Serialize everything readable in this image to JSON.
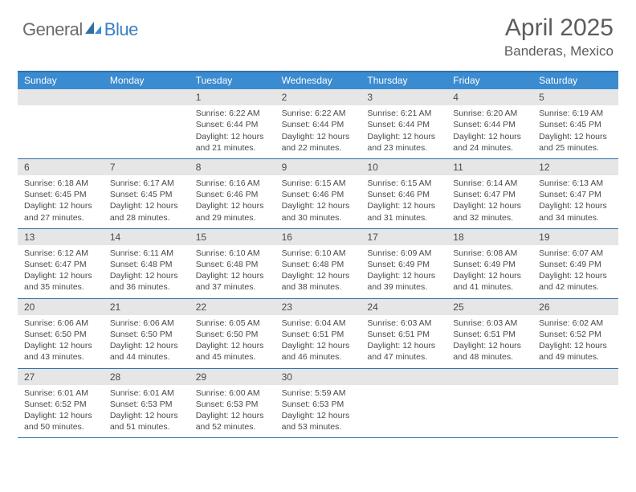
{
  "brand": {
    "part1": "General",
    "part2": "Blue"
  },
  "title": "April 2025",
  "location": "Banderas, Mexico",
  "colors": {
    "header_bar": "#3b8bd0",
    "border": "#2f6fa8",
    "day_header_bg": "#e6e6e6",
    "text": "#4a4a4a",
    "logo_gray": "#6b6b6b",
    "logo_blue": "#3b7fc4"
  },
  "weekdays": [
    "Sunday",
    "Monday",
    "Tuesday",
    "Wednesday",
    "Thursday",
    "Friday",
    "Saturday"
  ],
  "weeks": [
    [
      {
        "day": "",
        "lines": []
      },
      {
        "day": "",
        "lines": []
      },
      {
        "day": "1",
        "lines": [
          "Sunrise: 6:22 AM",
          "Sunset: 6:44 PM",
          "Daylight: 12 hours",
          "and 21 minutes."
        ]
      },
      {
        "day": "2",
        "lines": [
          "Sunrise: 6:22 AM",
          "Sunset: 6:44 PM",
          "Daylight: 12 hours",
          "and 22 minutes."
        ]
      },
      {
        "day": "3",
        "lines": [
          "Sunrise: 6:21 AM",
          "Sunset: 6:44 PM",
          "Daylight: 12 hours",
          "and 23 minutes."
        ]
      },
      {
        "day": "4",
        "lines": [
          "Sunrise: 6:20 AM",
          "Sunset: 6:44 PM",
          "Daylight: 12 hours",
          "and 24 minutes."
        ]
      },
      {
        "day": "5",
        "lines": [
          "Sunrise: 6:19 AM",
          "Sunset: 6:45 PM",
          "Daylight: 12 hours",
          "and 25 minutes."
        ]
      }
    ],
    [
      {
        "day": "6",
        "lines": [
          "Sunrise: 6:18 AM",
          "Sunset: 6:45 PM",
          "Daylight: 12 hours",
          "and 27 minutes."
        ]
      },
      {
        "day": "7",
        "lines": [
          "Sunrise: 6:17 AM",
          "Sunset: 6:45 PM",
          "Daylight: 12 hours",
          "and 28 minutes."
        ]
      },
      {
        "day": "8",
        "lines": [
          "Sunrise: 6:16 AM",
          "Sunset: 6:46 PM",
          "Daylight: 12 hours",
          "and 29 minutes."
        ]
      },
      {
        "day": "9",
        "lines": [
          "Sunrise: 6:15 AM",
          "Sunset: 6:46 PM",
          "Daylight: 12 hours",
          "and 30 minutes."
        ]
      },
      {
        "day": "10",
        "lines": [
          "Sunrise: 6:15 AM",
          "Sunset: 6:46 PM",
          "Daylight: 12 hours",
          "and 31 minutes."
        ]
      },
      {
        "day": "11",
        "lines": [
          "Sunrise: 6:14 AM",
          "Sunset: 6:47 PM",
          "Daylight: 12 hours",
          "and 32 minutes."
        ]
      },
      {
        "day": "12",
        "lines": [
          "Sunrise: 6:13 AM",
          "Sunset: 6:47 PM",
          "Daylight: 12 hours",
          "and 34 minutes."
        ]
      }
    ],
    [
      {
        "day": "13",
        "lines": [
          "Sunrise: 6:12 AM",
          "Sunset: 6:47 PM",
          "Daylight: 12 hours",
          "and 35 minutes."
        ]
      },
      {
        "day": "14",
        "lines": [
          "Sunrise: 6:11 AM",
          "Sunset: 6:48 PM",
          "Daylight: 12 hours",
          "and 36 minutes."
        ]
      },
      {
        "day": "15",
        "lines": [
          "Sunrise: 6:10 AM",
          "Sunset: 6:48 PM",
          "Daylight: 12 hours",
          "and 37 minutes."
        ]
      },
      {
        "day": "16",
        "lines": [
          "Sunrise: 6:10 AM",
          "Sunset: 6:48 PM",
          "Daylight: 12 hours",
          "and 38 minutes."
        ]
      },
      {
        "day": "17",
        "lines": [
          "Sunrise: 6:09 AM",
          "Sunset: 6:49 PM",
          "Daylight: 12 hours",
          "and 39 minutes."
        ]
      },
      {
        "day": "18",
        "lines": [
          "Sunrise: 6:08 AM",
          "Sunset: 6:49 PM",
          "Daylight: 12 hours",
          "and 41 minutes."
        ]
      },
      {
        "day": "19",
        "lines": [
          "Sunrise: 6:07 AM",
          "Sunset: 6:49 PM",
          "Daylight: 12 hours",
          "and 42 minutes."
        ]
      }
    ],
    [
      {
        "day": "20",
        "lines": [
          "Sunrise: 6:06 AM",
          "Sunset: 6:50 PM",
          "Daylight: 12 hours",
          "and 43 minutes."
        ]
      },
      {
        "day": "21",
        "lines": [
          "Sunrise: 6:06 AM",
          "Sunset: 6:50 PM",
          "Daylight: 12 hours",
          "and 44 minutes."
        ]
      },
      {
        "day": "22",
        "lines": [
          "Sunrise: 6:05 AM",
          "Sunset: 6:50 PM",
          "Daylight: 12 hours",
          "and 45 minutes."
        ]
      },
      {
        "day": "23",
        "lines": [
          "Sunrise: 6:04 AM",
          "Sunset: 6:51 PM",
          "Daylight: 12 hours",
          "and 46 minutes."
        ]
      },
      {
        "day": "24",
        "lines": [
          "Sunrise: 6:03 AM",
          "Sunset: 6:51 PM",
          "Daylight: 12 hours",
          "and 47 minutes."
        ]
      },
      {
        "day": "25",
        "lines": [
          "Sunrise: 6:03 AM",
          "Sunset: 6:51 PM",
          "Daylight: 12 hours",
          "and 48 minutes."
        ]
      },
      {
        "day": "26",
        "lines": [
          "Sunrise: 6:02 AM",
          "Sunset: 6:52 PM",
          "Daylight: 12 hours",
          "and 49 minutes."
        ]
      }
    ],
    [
      {
        "day": "27",
        "lines": [
          "Sunrise: 6:01 AM",
          "Sunset: 6:52 PM",
          "Daylight: 12 hours",
          "and 50 minutes."
        ]
      },
      {
        "day": "28",
        "lines": [
          "Sunrise: 6:01 AM",
          "Sunset: 6:53 PM",
          "Daylight: 12 hours",
          "and 51 minutes."
        ]
      },
      {
        "day": "29",
        "lines": [
          "Sunrise: 6:00 AM",
          "Sunset: 6:53 PM",
          "Daylight: 12 hours",
          "and 52 minutes."
        ]
      },
      {
        "day": "30",
        "lines": [
          "Sunrise: 5:59 AM",
          "Sunset: 6:53 PM",
          "Daylight: 12 hours",
          "and 53 minutes."
        ]
      },
      {
        "day": "",
        "lines": []
      },
      {
        "day": "",
        "lines": []
      },
      {
        "day": "",
        "lines": []
      }
    ]
  ]
}
